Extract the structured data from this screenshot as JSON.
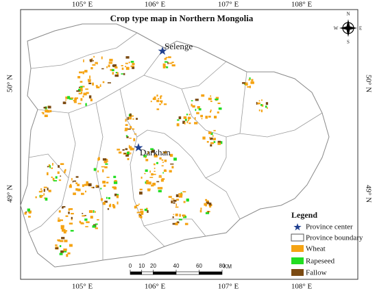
{
  "title": "Crop type map in Northern Mongolia",
  "longitude_labels": [
    "105° E",
    "106° E",
    "107° E",
    "108° E"
  ],
  "latitude_labels": [
    "50° N",
    "49° N"
  ],
  "places": [
    {
      "name": "Selenge"
    },
    {
      "name": "Darkhan"
    }
  ],
  "compass": {
    "north": "N",
    "east": "E",
    "south": "S",
    "west": "W"
  },
  "legend": {
    "title": "Legend",
    "items": [
      "Province center",
      "Province boundary",
      "Wheat",
      "Rapeseed",
      "Fallow"
    ]
  },
  "scale_bar": {
    "ticks": [
      0,
      10,
      20,
      40,
      60,
      80
    ],
    "unit": "KM"
  }
}
